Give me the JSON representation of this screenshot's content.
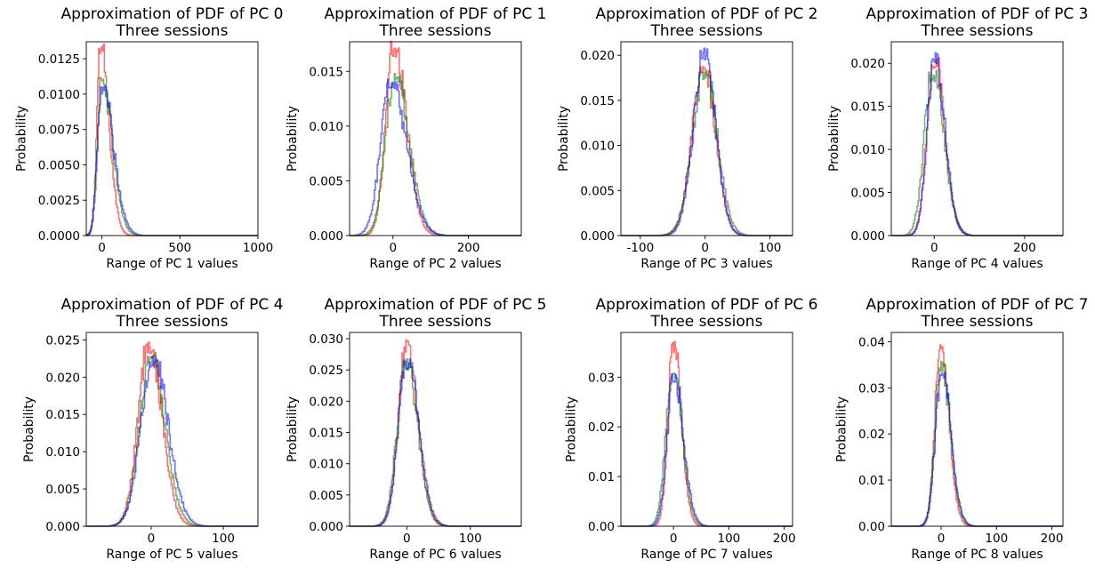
{
  "figure": {
    "rows": 2,
    "cols": 4
  },
  "chart_data": [
    {
      "type": "line",
      "style": "step-histogram",
      "title": "Approximation of PDF of PC 0",
      "subtitle": "Three sessions",
      "xlabel": "Range of PC 1 values",
      "ylabel": "Probability",
      "xlim": [
        -100,
        1000
      ],
      "ylim": [
        0,
        0.0137
      ],
      "xticks": [
        0,
        500,
        1000
      ],
      "yticks": [
        0,
        0.0025,
        0.005,
        0.0075,
        0.01,
        0.0125
      ],
      "ytick_labels": [
        "0.0000",
        "0.0025",
        "0.0050",
        "0.0075",
        "0.0100",
        "0.0125"
      ],
      "series": [
        {
          "color": "#ff0000",
          "center": -10,
          "width": 22,
          "peak": 0.0135,
          "skew": 2.5
        },
        {
          "color": "#008000",
          "center": -2,
          "width": 27,
          "peak": 0.0113,
          "skew": 2.5
        },
        {
          "color": "#0000ff",
          "center": 2,
          "width": 29,
          "peak": 0.0106,
          "skew": 2.5
        }
      ]
    },
    {
      "type": "line",
      "style": "step-histogram",
      "title": "Approximation of PDF of PC 1",
      "subtitle": "Three sessions",
      "xlabel": "Range of PC 2 values",
      "ylabel": "Probability",
      "xlim": [
        -115,
        340
      ],
      "ylim": [
        0,
        0.0177
      ],
      "xticks": [
        0,
        200
      ],
      "yticks": [
        0,
        0.005,
        0.01,
        0.015
      ],
      "ytick_labels": [
        "0.000",
        "0.005",
        "0.010",
        "0.015"
      ],
      "series": [
        {
          "color": "#ff0000",
          "center": 3,
          "width": 22,
          "peak": 0.0173,
          "skew": 1.5
        },
        {
          "color": "#008000",
          "center": 5,
          "width": 25,
          "peak": 0.0148,
          "skew": 1.5
        },
        {
          "color": "#0000ff",
          "center": -5,
          "width": 27,
          "peak": 0.0143,
          "skew": 1.5
        }
      ]
    },
    {
      "type": "line",
      "style": "step-histogram",
      "title": "Approximation of PDF of PC 2",
      "subtitle": "Three sessions",
      "xlabel": "Range of PC 3 values",
      "ylabel": "Probability",
      "xlim": [
        -130,
        135
      ],
      "ylim": [
        0,
        0.0215
      ],
      "xticks": [
        -100,
        0,
        100
      ],
      "yticks": [
        0,
        0.005,
        0.01,
        0.015,
        0.02
      ],
      "ytick_labels": [
        "0.000",
        "0.005",
        "0.010",
        "0.015",
        "0.020"
      ],
      "series": [
        {
          "color": "#ff0000",
          "center": -2,
          "width": 18,
          "peak": 0.0188,
          "skew": 1.0
        },
        {
          "color": "#008000",
          "center": 0,
          "width": 19,
          "peak": 0.0182,
          "skew": 1.0
        },
        {
          "color": "#0000ff",
          "center": -1,
          "width": 17,
          "peak": 0.0208,
          "skew": 1.0
        }
      ]
    },
    {
      "type": "line",
      "style": "step-histogram",
      "title": "Approximation of PDF of PC 3",
      "subtitle": "Three sessions",
      "xlabel": "Range of PC 4 values",
      "ylabel": "Probability",
      "xlim": [
        -95,
        285
      ],
      "ylim": [
        0,
        0.0225
      ],
      "xticks": [
        0,
        200
      ],
      "yticks": [
        0,
        0.005,
        0.01,
        0.015,
        0.02
      ],
      "ytick_labels": [
        "0.000",
        "0.005",
        "0.010",
        "0.015",
        "0.020"
      ],
      "series": [
        {
          "color": "#ff0000",
          "center": 0,
          "width": 16,
          "peak": 0.0208,
          "skew": 1.4
        },
        {
          "color": "#008000",
          "center": -4,
          "width": 18,
          "peak": 0.019,
          "skew": 1.4
        },
        {
          "color": "#0000ff",
          "center": 1,
          "width": 16,
          "peak": 0.0214,
          "skew": 1.4
        }
      ]
    },
    {
      "type": "line",
      "style": "step-histogram",
      "title": "Approximation of PDF of PC 4",
      "subtitle": "Three sessions",
      "xlabel": "Range of PC 5 values",
      "ylabel": "Probability",
      "xlim": [
        -90,
        148
      ],
      "ylim": [
        0,
        0.026
      ],
      "xticks": [
        0,
        100
      ],
      "yticks": [
        0,
        0.005,
        0.01,
        0.015,
        0.02,
        0.025
      ],
      "ytick_labels": [
        "0.000",
        "0.005",
        "0.010",
        "0.015",
        "0.020",
        "0.025"
      ],
      "series": [
        {
          "color": "#ff0000",
          "center": -3,
          "width": 15,
          "peak": 0.0248,
          "skew": 1.2
        },
        {
          "color": "#008000",
          "center": 0,
          "width": 16,
          "peak": 0.0233,
          "skew": 1.2
        },
        {
          "color": "#0000ff",
          "center": 3,
          "width": 17,
          "peak": 0.0228,
          "skew": 1.2
        }
      ]
    },
    {
      "type": "line",
      "style": "step-histogram",
      "title": "Approximation of PDF of PC 5",
      "subtitle": "Three sessions",
      "xlabel": "Range of PC 6 values",
      "ylabel": "Probability",
      "xlim": [
        -90,
        180
      ],
      "ylim": [
        0,
        0.031
      ],
      "xticks": [
        0,
        100
      ],
      "yticks": [
        0,
        0.005,
        0.01,
        0.015,
        0.02,
        0.025,
        0.03
      ],
      "ytick_labels": [
        "0.000",
        "0.005",
        "0.010",
        "0.015",
        "0.020",
        "0.025",
        "0.030"
      ],
      "series": [
        {
          "color": "#ff0000",
          "center": 0,
          "width": 13,
          "peak": 0.0298,
          "skew": 1.3
        },
        {
          "color": "#008000",
          "center": -1,
          "width": 14,
          "peak": 0.0268,
          "skew": 1.3
        },
        {
          "color": "#0000ff",
          "center": 1,
          "width": 14,
          "peak": 0.0268,
          "skew": 1.3
        }
      ]
    },
    {
      "type": "line",
      "style": "step-histogram",
      "title": "Approximation of PDF of PC 6",
      "subtitle": "Three sessions",
      "xlabel": "Range of PC 7 values",
      "ylabel": "Probability",
      "xlim": [
        -95,
        215
      ],
      "ylim": [
        0,
        0.039
      ],
      "xticks": [
        0,
        100,
        200
      ],
      "yticks": [
        0,
        0.01,
        0.02,
        0.03
      ],
      "ytick_labels": [
        "0.00",
        "0.01",
        "0.02",
        "0.03"
      ],
      "series": [
        {
          "color": "#ff0000",
          "center": 0,
          "width": 10,
          "peak": 0.0375,
          "skew": 1.4
        },
        {
          "color": "#008000",
          "center": -2,
          "width": 12,
          "peak": 0.0318,
          "skew": 1.4
        },
        {
          "color": "#0000ff",
          "center": 1,
          "width": 12,
          "peak": 0.031,
          "skew": 1.4
        }
      ]
    },
    {
      "type": "line",
      "style": "step-histogram",
      "title": "Approximation of PDF of PC 7",
      "subtitle": "Three sessions",
      "xlabel": "Range of PC 8 values",
      "ylabel": "Probability",
      "xlim": [
        -90,
        220
      ],
      "ylim": [
        0,
        0.042
      ],
      "xticks": [
        0,
        100,
        200
      ],
      "yticks": [
        0,
        0.01,
        0.02,
        0.03,
        0.04
      ],
      "ytick_labels": [
        "0.00",
        "0.01",
        "0.02",
        "0.03",
        "0.04"
      ],
      "series": [
        {
          "color": "#ff0000",
          "center": -1,
          "width": 10,
          "peak": 0.0402,
          "skew": 1.5
        },
        {
          "color": "#008000",
          "center": 0,
          "width": 11,
          "peak": 0.0358,
          "skew": 1.5
        },
        {
          "color": "#0000ff",
          "center": 1,
          "width": 11,
          "peak": 0.0338,
          "skew": 1.5
        }
      ]
    }
  ]
}
